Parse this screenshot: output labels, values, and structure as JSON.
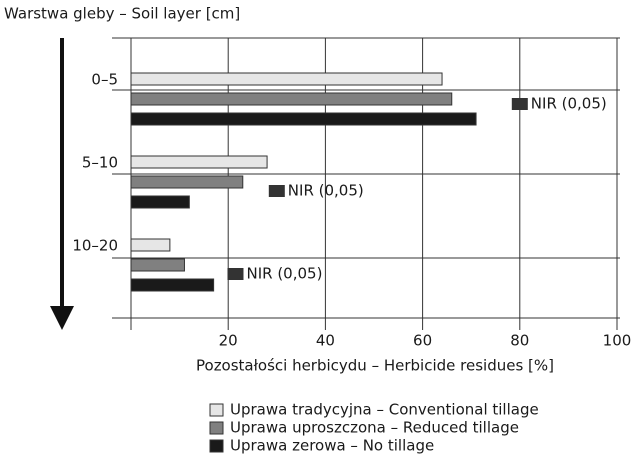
{
  "chart_data": {
    "type": "hbar",
    "y_label": "Warstwa gleby – Soil layer [cm]",
    "x_label": "Pozostałości herbicydu – Herbicide residues [%]",
    "categories": [
      "0–5",
      "5–10",
      "10–20"
    ],
    "series": [
      {
        "name": "Uprawa tradycyjna – Conventional tillage",
        "color": "#e6e6e6",
        "values": [
          64,
          28,
          8
        ]
      },
      {
        "name": "Uprawa uproszczona – Reduced tillage",
        "color": "#808080",
        "values": [
          66,
          23,
          11
        ]
      },
      {
        "name": "Uprawa zerowa – No tillage",
        "color": "#1a1a1a",
        "values": [
          71,
          12,
          17
        ]
      }
    ],
    "nir": {
      "label": "NIR (0,05)",
      "color": "#333333",
      "values": [
        80,
        30,
        21.5
      ]
    },
    "xlim": [
      0,
      100
    ],
    "xticks": [
      0,
      20,
      40,
      60,
      80,
      100
    ],
    "grid": true
  }
}
